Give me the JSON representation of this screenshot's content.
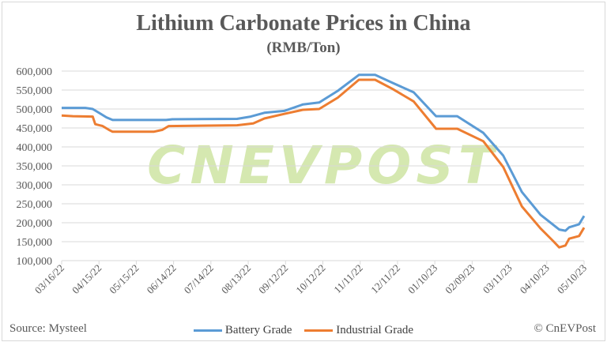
{
  "chart_data": {
    "type": "line",
    "title": "Lithium Carbonate Prices in China",
    "subtitle": "(RMB/Ton)",
    "ylim": [
      100000,
      600000
    ],
    "yticks": [
      "100,000",
      "150,000",
      "200,000",
      "250,000",
      "300,000",
      "350,000",
      "400,000",
      "450,000",
      "500,000",
      "550,000",
      "600,000"
    ],
    "xlim": [
      "2022-03-16",
      "2023-05-10"
    ],
    "xticks": [
      "03/16/22",
      "04/15/22",
      "05/15/22",
      "06/14/22",
      "07/14/22",
      "08/13/22",
      "09/12/22",
      "10/12/22",
      "11/11/22",
      "12/11/22",
      "01/10/23",
      "02/09/23",
      "03/11/23",
      "04/10/23",
      "05/10/23"
    ],
    "grid": "horizontal",
    "legend": "bottom",
    "watermark": "CNEVPOST",
    "series": [
      {
        "name": "Battery Grade",
        "color": "#5b9bd5",
        "points": [
          [
            "2022-03-16",
            503000
          ],
          [
            "2022-04-04",
            503000
          ],
          [
            "2022-04-10",
            500000
          ],
          [
            "2022-04-21",
            478000
          ],
          [
            "2022-04-26",
            471000
          ],
          [
            "2022-06-08",
            471000
          ],
          [
            "2022-06-13",
            473000
          ],
          [
            "2022-08-04",
            474000
          ],
          [
            "2022-08-15",
            480000
          ],
          [
            "2022-08-26",
            490000
          ],
          [
            "2022-09-11",
            495000
          ],
          [
            "2022-09-26",
            512000
          ],
          [
            "2022-10-09",
            517000
          ],
          [
            "2022-10-24",
            548000
          ],
          [
            "2022-11-10",
            590000
          ],
          [
            "2022-11-23",
            590000
          ],
          [
            "2022-12-07",
            569000
          ],
          [
            "2022-12-24",
            544000
          ],
          [
            "2023-01-11",
            481000
          ],
          [
            "2023-01-28",
            481000
          ],
          [
            "2023-02-18",
            437000
          ],
          [
            "2023-03-06",
            377000
          ],
          [
            "2023-03-21",
            281000
          ],
          [
            "2023-04-05",
            221000
          ],
          [
            "2023-04-20",
            182000
          ],
          [
            "2023-04-25",
            179000
          ],
          [
            "2023-04-28",
            188000
          ],
          [
            "2023-05-06",
            196000
          ],
          [
            "2023-05-10",
            218000
          ]
        ]
      },
      {
        "name": "Industrial Grade",
        "color": "#ed7d31",
        "points": [
          [
            "2022-03-16",
            483000
          ],
          [
            "2022-03-25",
            481000
          ],
          [
            "2022-04-10",
            480000
          ],
          [
            "2022-04-12",
            460000
          ],
          [
            "2022-04-18",
            455000
          ],
          [
            "2022-04-23",
            445000
          ],
          [
            "2022-04-26",
            440000
          ],
          [
            "2022-05-29",
            440000
          ],
          [
            "2022-06-05",
            445000
          ],
          [
            "2022-06-10",
            455000
          ],
          [
            "2022-08-04",
            457000
          ],
          [
            "2022-08-17",
            462000
          ],
          [
            "2022-08-26",
            475000
          ],
          [
            "2022-09-11",
            487000
          ],
          [
            "2022-09-26",
            498000
          ],
          [
            "2022-10-09",
            500000
          ],
          [
            "2022-10-24",
            530000
          ],
          [
            "2022-11-10",
            577000
          ],
          [
            "2022-11-23",
            577000
          ],
          [
            "2022-12-07",
            553000
          ],
          [
            "2022-12-24",
            520000
          ],
          [
            "2023-01-11",
            448000
          ],
          [
            "2023-01-28",
            448000
          ],
          [
            "2023-02-18",
            415000
          ],
          [
            "2023-03-06",
            347000
          ],
          [
            "2023-03-21",
            243000
          ],
          [
            "2023-04-05",
            185000
          ],
          [
            "2023-04-15",
            152000
          ],
          [
            "2023-04-20",
            135000
          ],
          [
            "2023-04-25",
            140000
          ],
          [
            "2023-04-28",
            158000
          ],
          [
            "2023-05-06",
            165000
          ],
          [
            "2023-05-10",
            187000
          ]
        ]
      }
    ]
  },
  "source": "Source: Mysteel",
  "credit": "© CnEVPost"
}
